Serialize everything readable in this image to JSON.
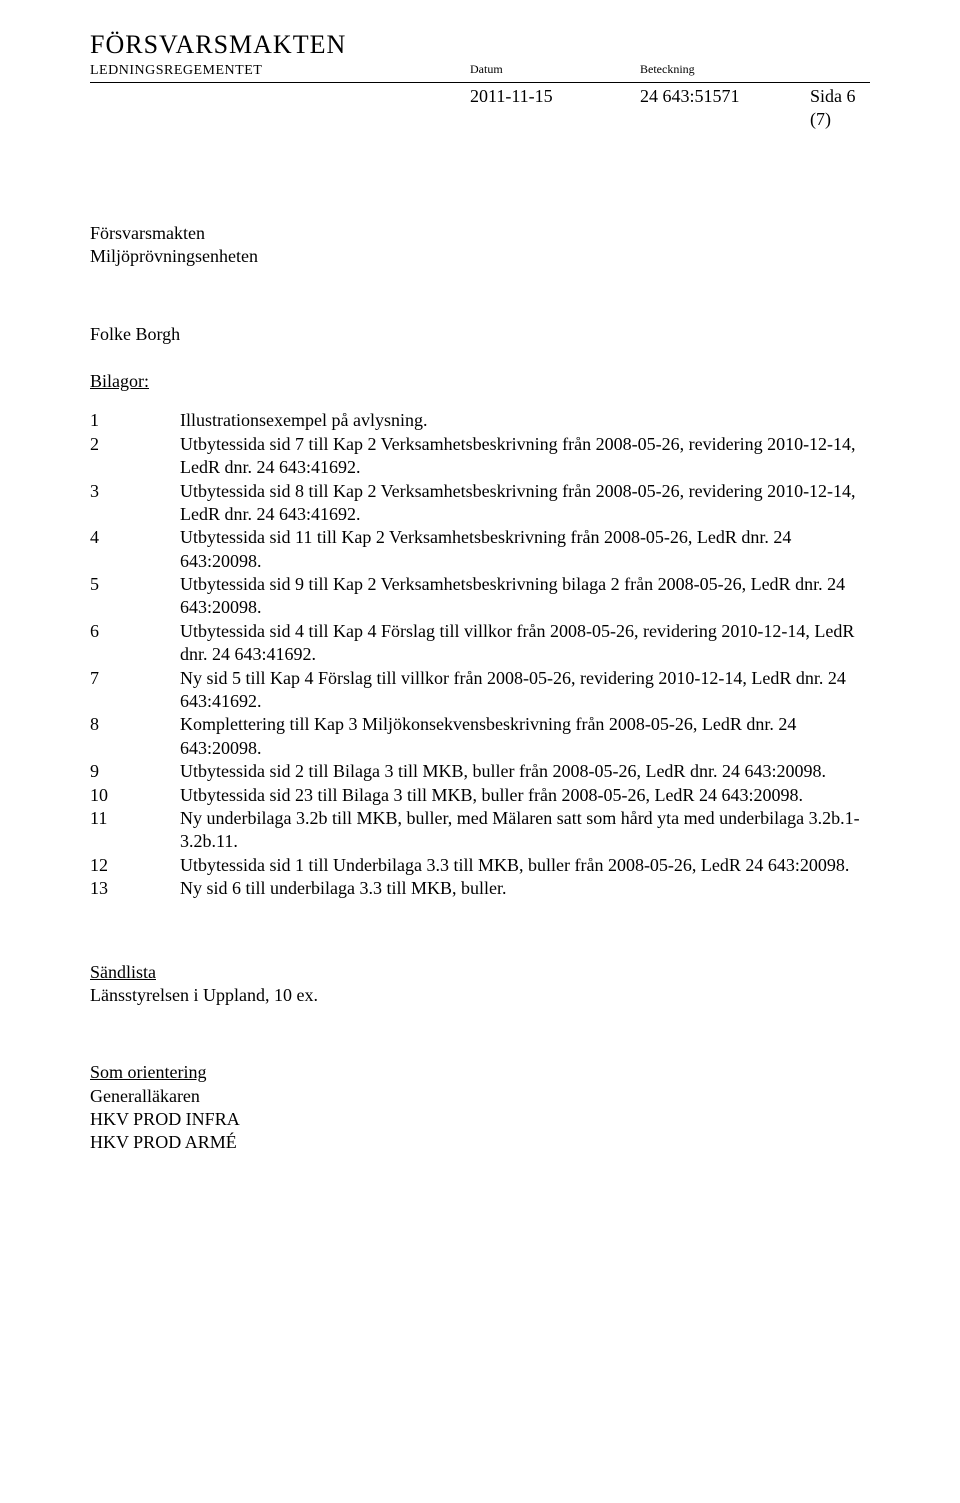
{
  "header": {
    "org": "FÖRSVARSMAKTEN",
    "unit": "LEDNINGSREGEMENTET",
    "datum_label": "Datum",
    "beteckning_label": "Beteckning",
    "date": "2011-11-15",
    "reference": "24 643:51571",
    "page": "Sida 6 (7)"
  },
  "addressee": {
    "line1": "Försvarsmakten",
    "line2": "Miljöprövningsenheten"
  },
  "signatory": "Folke Borgh",
  "bilagor_label": "Bilagor:",
  "bilagor": [
    {
      "n": "1",
      "t": "Illustrationsexempel på avlysning."
    },
    {
      "n": "2",
      "t": "Utbytessida sid 7 till Kap 2 Verksamhetsbeskrivning från 2008-05-26, revidering 2010-12-14, LedR dnr. 24 643:41692."
    },
    {
      "n": "3",
      "t": "Utbytessida sid 8 till Kap 2 Verksamhetsbeskrivning från 2008-05-26, revidering 2010-12-14, LedR dnr. 24 643:41692."
    },
    {
      "n": "4",
      "t": "Utbytessida sid 11 till Kap 2 Verksamhetsbeskrivning från 2008-05-26, LedR dnr. 24 643:20098."
    },
    {
      "n": "5",
      "t": "Utbytessida sid 9 till Kap 2 Verksamhetsbeskrivning bilaga 2 från 2008-05-26, LedR dnr. 24 643:20098."
    },
    {
      "n": "6",
      "t": "Utbytessida sid 4 till Kap 4 Förslag till villkor från 2008-05-26, revidering 2010-12-14, LedR dnr. 24 643:41692."
    },
    {
      "n": "7",
      "t": "Ny sid 5 till Kap 4 Förslag till villkor från 2008-05-26, revidering 2010-12-14, LedR dnr. 24 643:41692."
    },
    {
      "n": "8",
      "t": "Komplettering till Kap 3 Miljökonsekvensbeskrivning från 2008-05-26, LedR dnr. 24 643:20098."
    },
    {
      "n": "9",
      "t": "Utbytessida sid 2 till Bilaga 3 till MKB, buller från 2008-05-26, LedR dnr. 24 643:20098."
    },
    {
      "n": "10",
      "t": "Utbytessida sid 23 till Bilaga 3 till MKB, buller från 2008-05-26, LedR 24 643:20098."
    },
    {
      "n": "11",
      "t": "Ny underbilaga 3.2b till MKB, buller, med Mälaren satt som hård yta med underbilaga 3.2b.1-3.2b.11."
    },
    {
      "n": "12",
      "t": "Utbytessida sid 1 till Underbilaga 3.3 till MKB, buller från 2008-05-26, LedR 24 643:20098."
    },
    {
      "n": "13",
      "t": "Ny sid 6 till underbilaga 3.3 till MKB, buller."
    }
  ],
  "sandlista": {
    "label": "Sändlista",
    "line1": "Länsstyrelsen i Uppland, 10 ex."
  },
  "orientation": {
    "label": "Som orientering",
    "lines": [
      "Generalläkaren",
      "HKV PROD INFRA",
      "HKV PROD ARMÉ"
    ]
  }
}
